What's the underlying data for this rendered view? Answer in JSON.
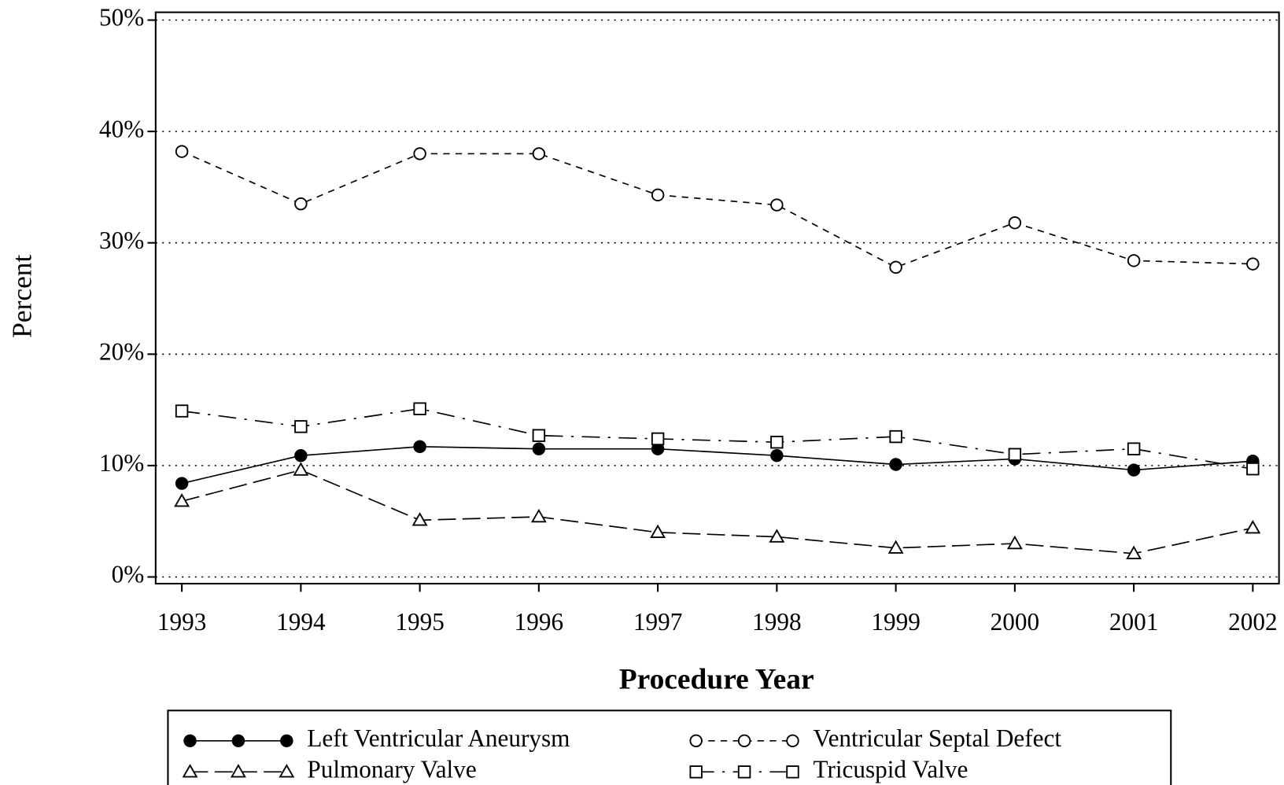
{
  "chart_data": {
    "type": "line",
    "x_label": "Procedure Year",
    "y_label": "Percent",
    "x": [
      1993,
      1994,
      1995,
      1996,
      1997,
      1998,
      1999,
      2000,
      2001,
      2002
    ],
    "xlim": [
      1992.78,
      2002.22
    ],
    "xticks": [
      1993,
      1994,
      1995,
      1996,
      1997,
      1998,
      1999,
      2000,
      2001,
      2002
    ],
    "ylim": [
      -0.6,
      50.7
    ],
    "yticks": [
      {
        "value": 0,
        "label": "0%"
      },
      {
        "value": 10,
        "label": "10%"
      },
      {
        "value": 20,
        "label": "20%"
      },
      {
        "value": 30,
        "label": "30%"
      },
      {
        "value": 40,
        "label": "40%"
      },
      {
        "value": 50,
        "label": "50%"
      }
    ],
    "grid": true,
    "series": [
      {
        "name": "Left Ventricular Aneurysm",
        "color": "#000000",
        "line_style": "solid",
        "marker": "filled-circle",
        "values": [
          8.4,
          10.9,
          11.7,
          11.5,
          11.5,
          10.9,
          10.1,
          10.6,
          9.6,
          10.4
        ]
      },
      {
        "name": "Ventricular Septal Defect",
        "color": "#000000",
        "line_style": "dashed",
        "marker": "circle",
        "values": [
          38.2,
          33.5,
          38.0,
          38.0,
          34.3,
          33.4,
          27.8,
          31.8,
          28.4,
          28.1
        ]
      },
      {
        "name": "Pulmonary Valve",
        "color": "#000000",
        "line_style": "longdash",
        "marker": "triangle",
        "values": [
          6.8,
          9.6,
          5.1,
          5.4,
          4.0,
          3.6,
          2.6,
          3.0,
          2.1,
          4.4
        ]
      },
      {
        "name": "Tricuspid Valve",
        "color": "#000000",
        "line_style": "dashdot",
        "marker": "square",
        "values": [
          14.9,
          13.5,
          15.1,
          12.7,
          12.4,
          12.1,
          12.6,
          11.0,
          11.5,
          9.7
        ]
      }
    ]
  }
}
